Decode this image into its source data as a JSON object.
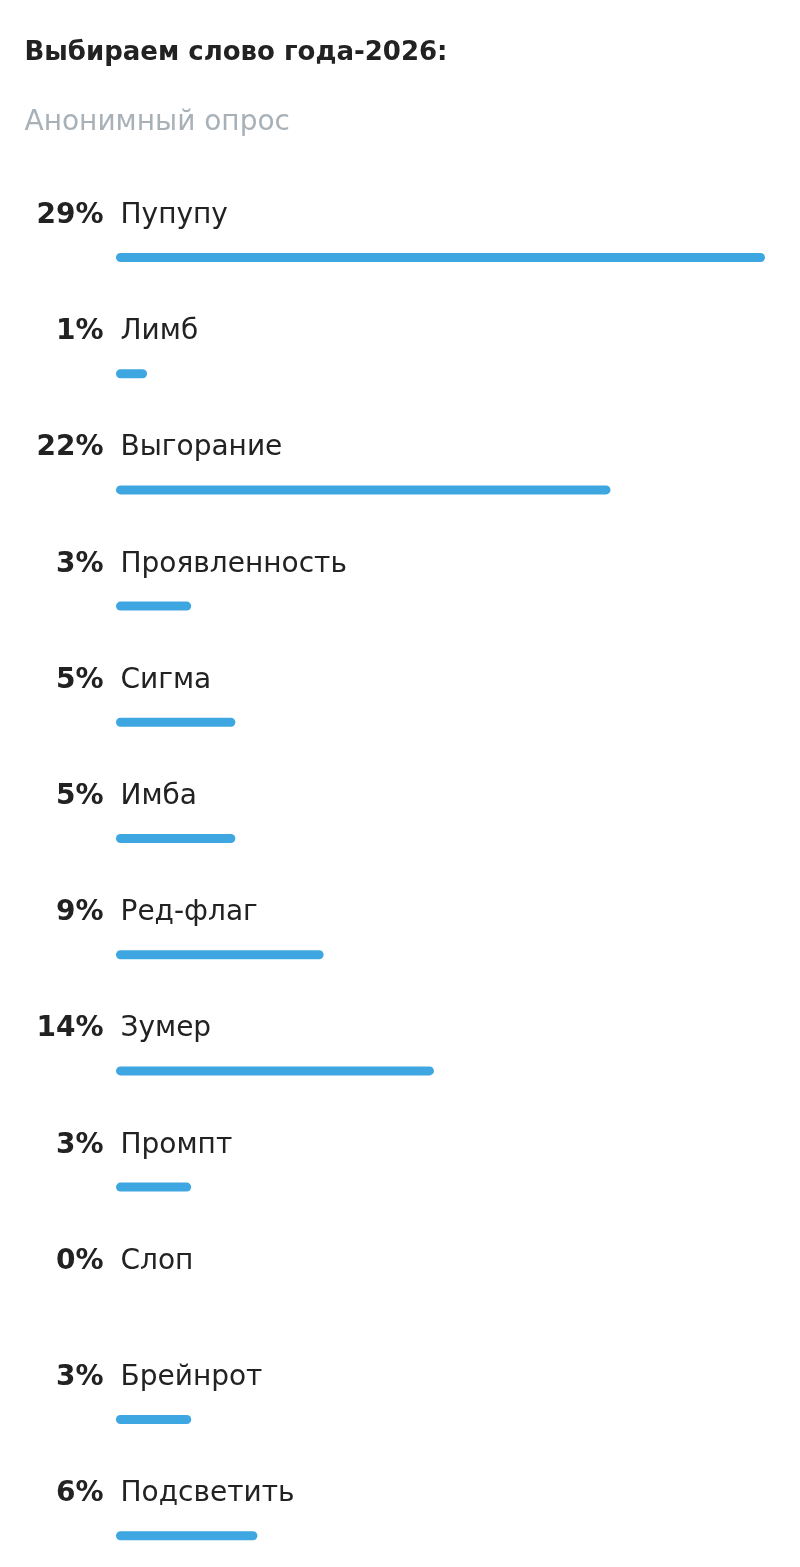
{
  "chart_data": {
    "type": "bar",
    "orientation": "horizontal",
    "title": "Выбираем слово года-2026:",
    "subtitle": "Анонимный опрос",
    "categories": [
      "Пупупу",
      "Лимб",
      "Выгорание",
      "Проявленность",
      "Сигма",
      "Имба",
      "Ред-флаг",
      "Зумер",
      "Промпт",
      "Слоп",
      "Брейнрот",
      "Подсветить"
    ],
    "values": [
      29,
      1,
      22,
      3,
      5,
      5,
      9,
      14,
      3,
      0,
      3,
      6
    ],
    "value_labels": [
      "29%",
      "1%",
      "22%",
      "3%",
      "5%",
      "5%",
      "9%",
      "14%",
      "3%",
      "0%",
      "3%",
      "6%"
    ],
    "color": "#3ea6e1"
  }
}
